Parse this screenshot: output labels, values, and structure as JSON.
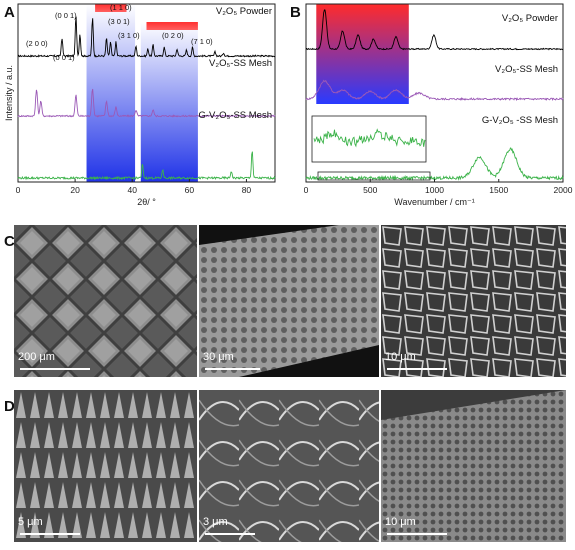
{
  "panels": {
    "a": "A",
    "b": "B",
    "c": "C",
    "d": "D"
  },
  "chart_data": [
    {
      "type": "line",
      "panel": "A",
      "xlabel": "2θ/ °",
      "ylabel": "Intensity / a.u.",
      "xlim": [
        0,
        90
      ],
      "xticks": [
        0,
        20,
        40,
        60,
        80
      ],
      "series": [
        {
          "name": "V₂O₅ Powder",
          "color": "#000000",
          "peaks": [
            [
              15.4,
              0.45
            ],
            [
              20.3,
              1.0
            ],
            [
              21.7,
              0.55
            ],
            [
              26.1,
              0.95
            ],
            [
              31.0,
              0.45
            ],
            [
              32.4,
              0.35
            ],
            [
              34.3,
              0.35
            ],
            [
              41.3,
              0.25
            ],
            [
              45.5,
              0.18
            ],
            [
              47.3,
              0.28
            ],
            [
              51.2,
              0.22
            ],
            [
              55.7,
              0.18
            ],
            [
              59.0,
              0.15
            ],
            [
              61.1,
              0.22
            ],
            [
              69.0,
              0.1
            ],
            [
              72.0,
              0.08
            ]
          ]
        },
        {
          "name": "V₂O₅-SS Mesh",
          "color": "#9b59b6",
          "peaks": [
            [
              6.5,
              0.9
            ],
            [
              8.0,
              0.5
            ],
            [
              20.3,
              0.7
            ],
            [
              26.1,
              0.9
            ],
            [
              31.0,
              0.5
            ],
            [
              34.3,
              0.3
            ],
            [
              41.3,
              0.2
            ],
            [
              47.3,
              0.2
            ]
          ]
        },
        {
          "name": "G-V₂O₅-SS Mesh",
          "color": "#3cb34a",
          "peaks": [
            [
              43.6,
              0.4
            ],
            [
              50.7,
              0.25
            ],
            [
              74.7,
              0.2
            ],
            [
              82.0,
              0.8
            ]
          ]
        }
      ],
      "annotations": [
        "(0 0 1)",
        "(2 0 0)",
        "(0 0 1)",
        "(1 1 0)",
        "(3 0 1)",
        "(3 1 0)",
        "(0 2 0)",
        "(7 1 0)"
      ]
    },
    {
      "type": "line",
      "panel": "B",
      "xlabel": "Wavenumber / cm⁻¹",
      "ylabel": "",
      "xlim": [
        0,
        2000
      ],
      "xticks": [
        0,
        500,
        1000,
        1500,
        2000
      ],
      "series": [
        {
          "name": "V₂O₅ Powder",
          "color": "#000000",
          "peaks": [
            [
              145,
              1.0
            ],
            [
              285,
              0.45
            ],
            [
              405,
              0.35
            ],
            [
              525,
              0.25
            ],
            [
              700,
              0.3
            ],
            [
              995,
              0.35
            ]
          ]
        },
        {
          "name": "V₂O₅-SS Mesh",
          "color": "#9b59b6",
          "peaks": [
            [
              145,
              0.6
            ],
            [
              285,
              0.3
            ],
            [
              500,
              0.25
            ],
            [
              700,
              0.3
            ],
            [
              880,
              0.2
            ]
          ]
        },
        {
          "name": "G-V₂O₅ -SS Mesh",
          "color": "#3cb34a",
          "peaks": [
            [
              1350,
              0.55
            ],
            [
              1590,
              0.75
            ]
          ]
        }
      ]
    }
  ],
  "sem": {
    "c": [
      {
        "scale": "200 μm"
      },
      {
        "scale": "30 μm"
      },
      {
        "scale": "10 μm"
      }
    ],
    "d": [
      {
        "scale": "5 μm"
      },
      {
        "scale": "3 μm"
      },
      {
        "scale": "10 μm"
      }
    ]
  }
}
